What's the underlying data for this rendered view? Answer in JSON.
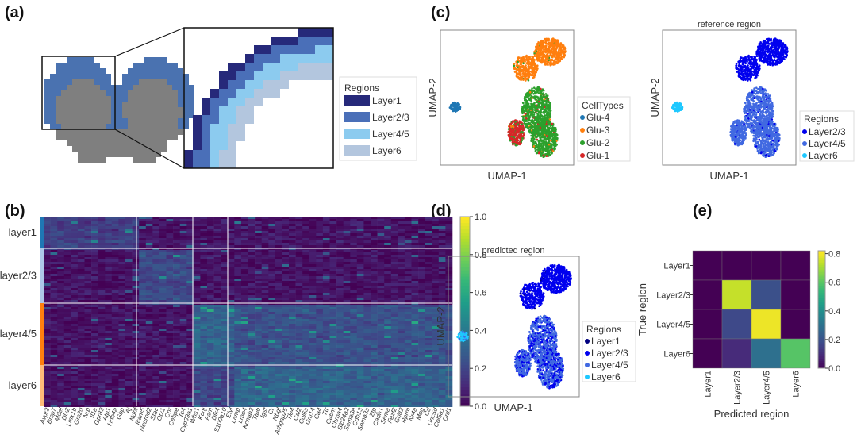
{
  "panels": {
    "a": {
      "label": "(a)",
      "legend_title": "Regions",
      "legend": [
        {
          "name": "Layer1",
          "color": "#26297a"
        },
        {
          "name": "Layer2/3",
          "color": "#4a6fb8"
        },
        {
          "name": "Layer4/5",
          "color": "#8ccbef"
        },
        {
          "name": "Layer6",
          "color": "#b3c6de"
        }
      ],
      "cortex_color": "#4a72b0",
      "other_color": "#7f7f7f"
    },
    "b": {
      "label": "(b)",
      "row_groups": [
        {
          "name": "layer1",
          "color": "#1f77b4"
        },
        {
          "name": "layer2/3",
          "color": "#aec7e8"
        },
        {
          "name": "layer4/5",
          "color": "#ff7f0e"
        },
        {
          "name": "layer6",
          "color": "#ffbb78"
        }
      ],
      "colorbar_ticks": [
        "1.0",
        "0.8",
        "0.6",
        "0.4",
        "0.2",
        "0.0"
      ],
      "colormap": "viridis",
      "genes": [
        "Avpr2",
        "Bmp7",
        "Mdel",
        "Dlx2",
        "Lmx1b",
        "Gm20",
        "Nrp",
        "Il1a",
        "Gpr83",
        "Atp1",
        "Hdh4a",
        "Gbp",
        "Aj",
        "Ndnf",
        "Icam5",
        "Neurod2",
        "Stac",
        "Otx1",
        "Cnr",
        "Cebpe",
        "Tc4",
        "Cyp39a1",
        "Whs1",
        "Kcnj",
        "Fam",
        "Dlk4",
        "S100a10",
        "Elvl",
        "Lamp",
        "Lmo4",
        "Kcnab3",
        "Ttpb",
        "Igsf",
        "Cr",
        "Nbgl",
        "Arhgap25",
        "Tle4",
        "Cal2",
        "Col6a",
        "Gm14",
        "Ca4",
        "Ttr",
        "Cabm",
        "Chrna4",
        "Slc24a2",
        "Sema3e",
        "Cdh13",
        "Sema3a",
        "Zfp",
        "Cadh1",
        "Sema",
        "Fezf2",
        "Grid2",
        "Rprm",
        "Nr4a",
        "Mog",
        "Cd",
        "Unc5d",
        "Col5a1",
        "Drd1"
      ]
    },
    "c": {
      "label": "(c)",
      "left": {
        "xlabel": "UMAP-1",
        "ylabel": "UMAP-2",
        "legend_title": "CellTypes",
        "legend": [
          {
            "name": "Glu-4",
            "color": "#1f77b4"
          },
          {
            "name": "Glu-3",
            "color": "#ff7f0e"
          },
          {
            "name": "Glu-2",
            "color": "#2ca02c"
          },
          {
            "name": "Glu-1",
            "color": "#d62728"
          }
        ]
      },
      "right": {
        "title": "reference region",
        "xlabel": "UMAP-1",
        "ylabel": "UMAP-2",
        "legend_title": "Regions",
        "legend": [
          {
            "name": "Layer2/3",
            "color": "#0000ee"
          },
          {
            "name": "Layer4/5",
            "color": "#4169e1"
          },
          {
            "name": "Layer6",
            "color": "#1ec8ff"
          }
        ]
      }
    },
    "d": {
      "label": "(d)",
      "title": "predicted region",
      "xlabel": "UMAP-1",
      "ylabel": "UMAP-2",
      "legend_title": "Regions",
      "legend": [
        {
          "name": "Layer1",
          "color": "#000080"
        },
        {
          "name": "Layer2/3",
          "color": "#0000ee"
        },
        {
          "name": "Layer4/5",
          "color": "#4169e1"
        },
        {
          "name": "Layer6",
          "color": "#1ec8ff"
        }
      ]
    },
    "e": {
      "label": "(e)"
    }
  },
  "chart_data": {
    "type": "heatmap",
    "rows": [
      "Layer1",
      "Layer2/3",
      "Layer4/5",
      "Layer6"
    ],
    "columns": [
      "Layer1",
      "Layer2/3",
      "Layer4/5",
      "Layer6"
    ],
    "values": [
      [
        0.0,
        0.0,
        0.0,
        0.0
      ],
      [
        0.0,
        0.75,
        0.2,
        0.0
      ],
      [
        0.0,
        0.18,
        0.8,
        0.0
      ],
      [
        0.0,
        0.1,
        0.3,
        0.6
      ]
    ],
    "xlabel": "Predicted region",
    "ylabel": "True region",
    "colorbar_ticks": [
      "0.8",
      "0.6",
      "0.4",
      "0.2",
      "0.0"
    ],
    "vlim": [
      0,
      0.82
    ],
    "colormap": "viridis"
  }
}
